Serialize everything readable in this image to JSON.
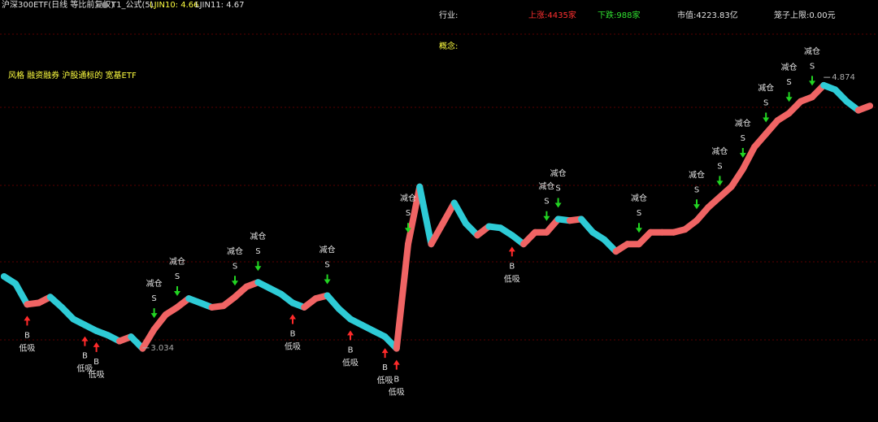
{
  "header": {
    "title": "沪深300ETF(日线 等比前复权)",
    "formula": "T1_公式(5)",
    "ljin10": "LJIN10: 4.66",
    "ljin11": "LJIN11: 4.67"
  },
  "info": {
    "industry": "行业:",
    "up": "上涨:4435家",
    "down": "下跌:988家",
    "market_cap": "市值:4223.83亿",
    "cage": "笼子上限:0.00元",
    "concept": "概念:",
    "style": "风格 融资融券 沪股通标的 宽基ETF"
  },
  "chart_data": {
    "type": "line",
    "categories": [
      null,
      null,
      null,
      null,
      null,
      null,
      null,
      null,
      null,
      null,
      null,
      null,
      null,
      null,
      null,
      null,
      null,
      null,
      null,
      null,
      null,
      null,
      null,
      null,
      null,
      null,
      null,
      null,
      null,
      null,
      null,
      null,
      null,
      null,
      null,
      null,
      null,
      null,
      null,
      null,
      null,
      null,
      null,
      null,
      null,
      null,
      null,
      null,
      null,
      null,
      null,
      null,
      null,
      null,
      null,
      null,
      null,
      null,
      null,
      null,
      null,
      null,
      null,
      null,
      null,
      null,
      null,
      null,
      null,
      null,
      null,
      null,
      null,
      null,
      null,
      null
    ],
    "values": [
      3.52,
      3.47,
      3.33,
      3.34,
      3.38,
      3.31,
      3.23,
      3.19,
      3.15,
      3.12,
      3.08,
      3.11,
      3.03,
      3.16,
      3.26,
      3.31,
      3.37,
      3.34,
      3.31,
      3.32,
      3.38,
      3.45,
      3.48,
      3.44,
      3.4,
      3.34,
      3.31,
      3.37,
      3.39,
      3.3,
      3.23,
      3.19,
      3.15,
      3.11,
      3.03,
      3.74,
      4.13,
      3.74,
      3.88,
      4.02,
      3.88,
      3.8,
      3.86,
      3.85,
      3.8,
      3.74,
      3.82,
      3.82,
      3.91,
      3.9,
      3.91,
      3.82,
      3.77,
      3.69,
      3.74,
      3.74,
      3.82,
      3.82,
      3.82,
      3.84,
      3.9,
      3.99,
      4.06,
      4.13,
      4.25,
      4.4,
      4.49,
      4.58,
      4.63,
      4.71,
      4.74,
      4.82,
      4.79,
      4.71,
      4.65,
      4.68
    ],
    "up_color": "#f06464",
    "down_color": "#2ecbd6",
    "ylim": [
      2.53,
      5.4
    ],
    "low_label": 3.034,
    "high_label": 4.874,
    "signal_types": [
      {
        "labels": [
          "B",
          "低吸"
        ],
        "color": "#ff2a2a"
      },
      {
        "labels": [
          "S",
          "减仓"
        ],
        "color": "#22d422"
      }
    ],
    "signals": [
      null,
      null,
      0,
      null,
      null,
      null,
      null,
      0,
      0,
      null,
      null,
      null,
      null,
      1,
      null,
      1,
      null,
      null,
      null,
      null,
      1,
      null,
      1,
      null,
      null,
      0,
      null,
      null,
      1,
      null,
      0,
      null,
      null,
      0,
      0,
      1,
      null,
      null,
      null,
      null,
      null,
      null,
      null,
      null,
      0,
      null,
      null,
      1,
      1,
      null,
      null,
      null,
      null,
      null,
      null,
      1,
      null,
      null,
      null,
      null,
      1,
      null,
      1,
      null,
      1,
      null,
      1,
      null,
      1,
      null,
      1,
      null,
      null,
      null,
      null,
      null
    ]
  }
}
